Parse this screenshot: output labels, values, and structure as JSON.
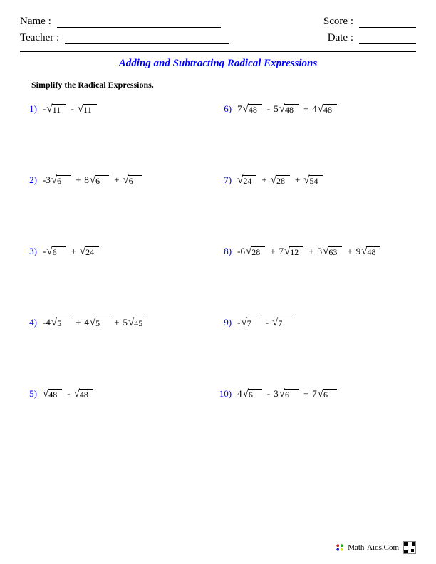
{
  "header": {
    "name_label": "Name :",
    "teacher_label": "Teacher :",
    "score_label": "Score :",
    "date_label": "Date :"
  },
  "title": "Adding and Subtracting Radical Expressions",
  "instruction": "Simplify the Radical Expressions.",
  "layout": {
    "name_line_width": 230,
    "teacher_line_width": 230,
    "score_line_width": 80,
    "date_line_width": 80
  },
  "problems_left": [
    {
      "num": "1)",
      "terms": [
        {
          "coef": "-",
          "rad": "11"
        },
        {
          "op": "-",
          "coef": "",
          "rad": "11"
        }
      ]
    },
    {
      "num": "2)",
      "terms": [
        {
          "coef": "-3",
          "rad": "6"
        },
        {
          "op": "+",
          "coef": "8",
          "rad": "6"
        },
        {
          "op": "+",
          "coef": "",
          "rad": "6"
        }
      ]
    },
    {
      "num": "3)",
      "terms": [
        {
          "coef": "-",
          "rad": "6"
        },
        {
          "op": "+",
          "coef": "",
          "rad": "24"
        }
      ]
    },
    {
      "num": "4)",
      "terms": [
        {
          "coef": "-4",
          "rad": "5"
        },
        {
          "op": "+",
          "coef": "4",
          "rad": "5"
        },
        {
          "op": "+",
          "coef": "5",
          "rad": "45"
        }
      ]
    },
    {
      "num": "5)",
      "terms": [
        {
          "coef": "",
          "rad": "48"
        },
        {
          "op": "-",
          "coef": "",
          "rad": "48"
        }
      ]
    }
  ],
  "problems_right": [
    {
      "num": "6)",
      "terms": [
        {
          "coef": "7",
          "rad": "48"
        },
        {
          "op": "-",
          "coef": "5",
          "rad": "48"
        },
        {
          "op": "+",
          "coef": "4",
          "rad": "48"
        }
      ]
    },
    {
      "num": "7)",
      "terms": [
        {
          "coef": "",
          "rad": "24"
        },
        {
          "op": "+",
          "coef": "",
          "rad": "28"
        },
        {
          "op": "+",
          "coef": "",
          "rad": "54"
        }
      ]
    },
    {
      "num": "8)",
      "terms": [
        {
          "coef": "-6",
          "rad": "28"
        },
        {
          "op": "+",
          "coef": "7",
          "rad": "12"
        },
        {
          "op": "+",
          "coef": "3",
          "rad": "63"
        },
        {
          "op": "+",
          "coef": "9",
          "rad": "48"
        }
      ]
    },
    {
      "num": "9)",
      "terms": [
        {
          "coef": "-",
          "rad": "7"
        },
        {
          "op": "-",
          "coef": "",
          "rad": "7"
        }
      ]
    },
    {
      "num": "10)",
      "terms": [
        {
          "coef": "4",
          "rad": "6"
        },
        {
          "op": "-",
          "coef": "3",
          "rad": "6"
        },
        {
          "op": "+",
          "coef": "7",
          "rad": "6"
        }
      ]
    }
  ],
  "footer": {
    "site": "Math-Aids.Com"
  },
  "colors": {
    "title": "#0000ff",
    "problem_number": "#0000ff",
    "text": "#000000",
    "background": "#ffffff"
  },
  "typography": {
    "title_fontsize": 15,
    "body_fontsize": 13,
    "instruction_fontsize": 12,
    "footer_fontsize": 11,
    "font_family": "Times New Roman"
  }
}
